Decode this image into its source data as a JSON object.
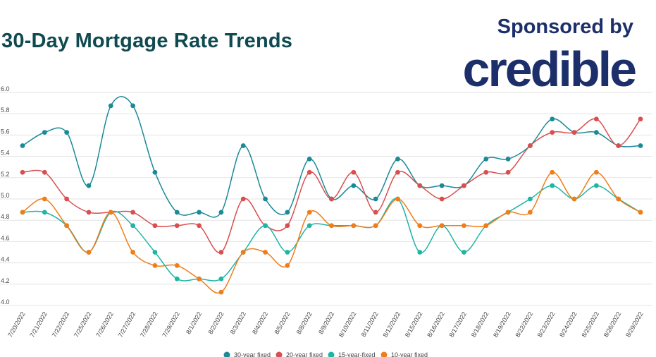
{
  "header": {
    "title": "30-Day Mortgage Rate Trends"
  },
  "sponsor": {
    "label": "Sponsored by",
    "brand": "credible"
  },
  "chart_data": {
    "type": "line",
    "title": "30-Day Mortgage Rate Trends",
    "xlabel": "",
    "ylabel": "",
    "ylim": [
      4.0,
      6.0
    ],
    "yticks": [
      "6.0",
      "5.8",
      "5.6",
      "5.4",
      "5.2",
      "5.0",
      "4.8",
      "4.6",
      "4.4",
      "4.2",
      "4.0"
    ],
    "grid": true,
    "legend_position": "bottom",
    "categories": [
      "7/20/2022",
      "7/21/2022",
      "7/22/2022",
      "7/25/2022",
      "7/26/2022",
      "7/27/2022",
      "7/28/2022",
      "7/29/2022",
      "8/1/2022",
      "8/2/2022",
      "8/3/2022",
      "8/4/2022",
      "8/5/2022",
      "8/8/2022",
      "8/9/2022",
      "8/10/2022",
      "8/11/2022",
      "8/12/2022",
      "8/15/2022",
      "8/16/2022",
      "8/17/2022",
      "8/18/2022",
      "8/19/2022",
      "8/22/2022",
      "8/23/2022",
      "8/24/2022",
      "8/25/2022",
      "8/26/2022",
      "8/29/2022"
    ],
    "series": [
      {
        "name": "30-year fixed",
        "color": "#1a8a96",
        "values": [
          5.5,
          5.625,
          5.625,
          5.125,
          5.875,
          5.875,
          5.25,
          4.875,
          4.875,
          4.875,
          5.5,
          5.0,
          4.875,
          5.375,
          5.0,
          5.125,
          5.0,
          5.375,
          5.125,
          5.125,
          5.125,
          5.375,
          5.375,
          5.5,
          5.75,
          5.625,
          5.625,
          5.5,
          5.5
        ]
      },
      {
        "name": "20-year fixed",
        "color": "#d94f4f",
        "values": [
          5.25,
          5.25,
          5.0,
          4.875,
          4.875,
          4.875,
          4.75,
          4.75,
          4.75,
          4.5,
          5.0,
          4.75,
          4.75,
          5.25,
          5.0,
          5.25,
          4.875,
          5.25,
          5.125,
          5.0,
          5.125,
          5.25,
          5.25,
          5.5,
          5.625,
          5.625,
          5.75,
          5.5,
          5.75
        ]
      },
      {
        "name": "15-year-fixed",
        "color": "#1fb5a5",
        "values": [
          4.875,
          4.875,
          4.75,
          4.5,
          4.875,
          4.75,
          4.5,
          4.25,
          4.25,
          4.25,
          4.5,
          4.75,
          4.5,
          4.75,
          4.75,
          4.75,
          4.75,
          5.0,
          4.5,
          4.75,
          4.5,
          4.75,
          4.875,
          5.0,
          5.125,
          5.0,
          5.125,
          5.0,
          4.875
        ]
      },
      {
        "name": "10-year fixed",
        "color": "#ef7d1a",
        "values": [
          4.875,
          5.0,
          4.75,
          4.5,
          4.875,
          4.5,
          4.375,
          4.375,
          4.25,
          4.125,
          4.5,
          4.5,
          4.375,
          4.875,
          4.75,
          4.75,
          4.75,
          5.0,
          4.75,
          4.75,
          4.75,
          4.75,
          4.875,
          4.875,
          5.25,
          5.0,
          5.25,
          5.0,
          4.875
        ]
      }
    ]
  }
}
